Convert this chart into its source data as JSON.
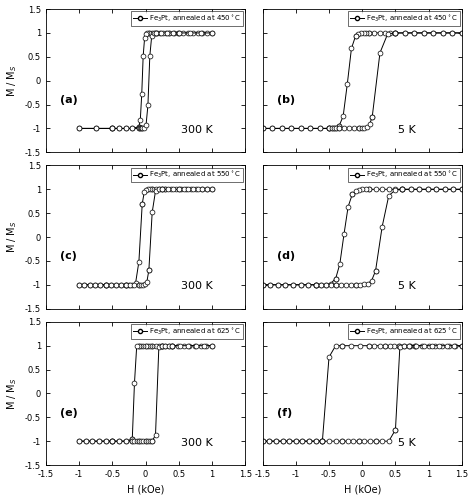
{
  "subplots": [
    {
      "label": "(a)",
      "temp": "300 K",
      "anneal": "450",
      "Hc": 0.05,
      "alpha": 0.025,
      "Hmax": 1.0,
      "Hsat_lo": 0.5,
      "xlim_left": -1.5,
      "xlim_right": 1.5
    },
    {
      "label": "(b)",
      "temp": "5 K",
      "anneal": "450",
      "Hc": 0.22,
      "alpha": 0.07,
      "Hmax": 1.5,
      "Hsat_lo": 1.0,
      "xlim_left": -1.5,
      "xlim_right": 1.5
    },
    {
      "label": "(c)",
      "temp": "300 K",
      "anneal": "550",
      "Hc": 0.08,
      "alpha": 0.035,
      "Hmax": 1.0,
      "Hsat_lo": 1.0,
      "xlim_left": -1.5,
      "xlim_right": 1.5
    },
    {
      "label": "(d)",
      "temp": "5 K",
      "anneal": "550",
      "Hc": 0.28,
      "alpha": 0.09,
      "Hmax": 1.5,
      "Hsat_lo": 1.0,
      "xlim_left": -1.5,
      "xlim_right": 1.5
    },
    {
      "label": "(e)",
      "temp": "300 K",
      "anneal": "625",
      "Hc": 0.17,
      "alpha": 0.015,
      "Hmax": 1.0,
      "Hsat_lo": 1.0,
      "xlim_left": -1.5,
      "xlim_right": 1.5
    },
    {
      "label": "(f)",
      "temp": "5 K",
      "anneal": "625",
      "Hc": 0.52,
      "alpha": 0.02,
      "Hmax": 1.5,
      "Hsat_lo": 1.5,
      "xlim_left": -1.5,
      "xlim_right": 1.5
    }
  ],
  "ylabel": "M / M$_S$",
  "xlabel": "H (kOe)",
  "markersize": 3.5,
  "linewidth": 0.7,
  "legend_fontsize": 5.0,
  "label_fontsize": 8,
  "temp_fontsize": 8,
  "tick_fontsize": 6,
  "axis_label_fontsize": 7
}
